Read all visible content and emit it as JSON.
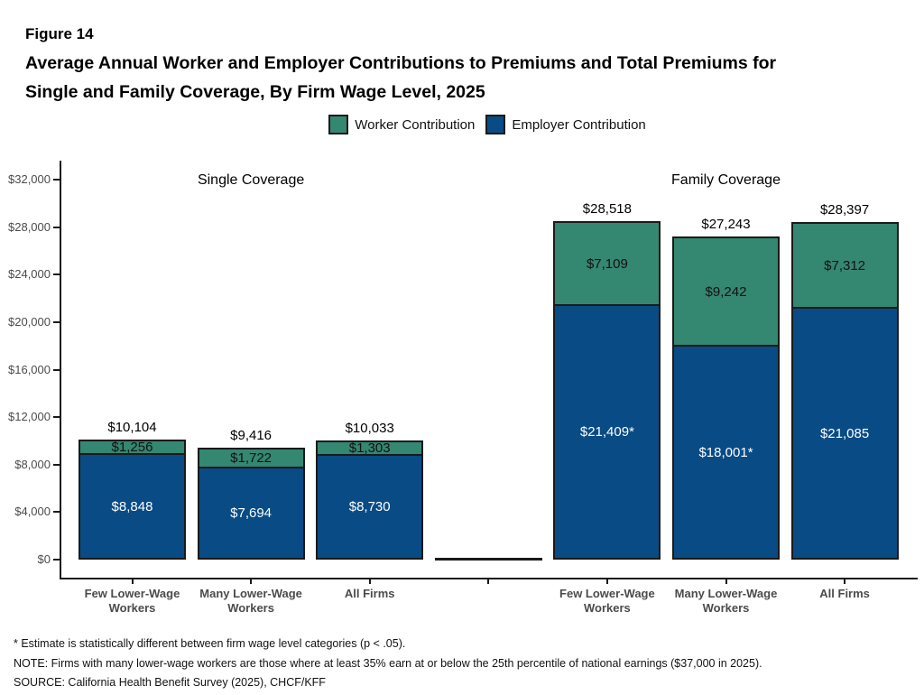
{
  "figure": {
    "label": "Figure 14",
    "title_line1": "Average Annual Worker and Employer Contributions to Premiums and Total Premiums for",
    "title_line2": "Single and Family Coverage, By Firm Wage Level, 2025"
  },
  "legend": [
    {
      "label": "Worker Contribution",
      "color": "#348770"
    },
    {
      "label": "Employer Contribution",
      "color": "#094B85"
    }
  ],
  "chart_data": {
    "type": "bar",
    "stacked": true,
    "series": [
      "Worker Contribution",
      "Employer Contribution"
    ],
    "series_colors": {
      "worker": "#348770",
      "employer": "#094B85"
    },
    "ylim": [
      0,
      32000
    ],
    "grid": false,
    "y_ticks": [
      {
        "value": 0,
        "label": "$0"
      },
      {
        "value": 4000,
        "label": "$4,000"
      },
      {
        "value": 8000,
        "label": "$8,000"
      },
      {
        "value": 12000,
        "label": "$12,000"
      },
      {
        "value": 16000,
        "label": "$16,000"
      },
      {
        "value": 20000,
        "label": "$20,000"
      },
      {
        "value": 24000,
        "label": "$24,000"
      },
      {
        "value": 28000,
        "label": "$28,000"
      },
      {
        "value": 32000,
        "label": "$32,000"
      }
    ],
    "groups": [
      {
        "title": "Single Coverage",
        "bars": [
          {
            "category_lines": [
              "Few Lower-Wage",
              "Workers"
            ],
            "worker": 1256,
            "employer": 8848,
            "total": 10104,
            "worker_label": "$1,256",
            "employer_label": "$8,848",
            "total_label": "$10,104"
          },
          {
            "category_lines": [
              "Many Lower-Wage",
              "Workers"
            ],
            "worker": 1722,
            "employer": 7694,
            "total": 9416,
            "worker_label": "$1,722",
            "employer_label": "$7,694",
            "total_label": "$9,416"
          },
          {
            "category_lines": [
              "All Firms"
            ],
            "worker": 1303,
            "employer": 8730,
            "total": 10033,
            "worker_label": "$1,303",
            "employer_label": "$8,730",
            "total_label": "$10,033"
          }
        ]
      },
      {
        "title": "Family Coverage",
        "bars": [
          {
            "category_lines": [
              "Few Lower-Wage",
              "Workers"
            ],
            "worker": 7109,
            "employer": 21409,
            "total": 28518,
            "worker_label": "$7,109",
            "employer_label": "$21,409*",
            "total_label": "$28,518"
          },
          {
            "category_lines": [
              "Many Lower-Wage",
              "Workers"
            ],
            "worker": 9242,
            "employer": 18001,
            "total": 27243,
            "worker_label": "$9,242",
            "employer_label": "$18,001*",
            "total_label": "$27,243"
          },
          {
            "category_lines": [
              "All Firms"
            ],
            "worker": 7312,
            "employer": 21085,
            "total": 28397,
            "worker_label": "$7,312",
            "employer_label": "$21,085",
            "total_label": "$28,397"
          }
        ]
      }
    ]
  },
  "footnotes": [
    "* Estimate is statistically different between firm wage level categories (p < .05).",
    "NOTE: Firms with many lower-wage workers are those where at least 35% earn at or below the 25th percentile of national earnings ($37,000 in 2025).",
    "SOURCE: California Health Benefit Survey (2025), CHCF/KFF"
  ]
}
